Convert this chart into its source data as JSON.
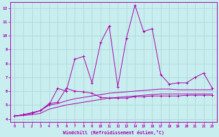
{
  "xlabel": "Windchill (Refroidissement éolien,°C)",
  "background_color": "#c8eef0",
  "grid_color": "#b0d8d8",
  "line_color": "#aa00aa",
  "xlim": [
    -0.5,
    23.5
  ],
  "ylim": [
    3.8,
    12.4
  ],
  "yticks": [
    4,
    5,
    6,
    7,
    8,
    9,
    10,
    11,
    12
  ],
  "xticks": [
    0,
    1,
    2,
    3,
    4,
    5,
    6,
    7,
    8,
    9,
    10,
    11,
    12,
    13,
    14,
    15,
    16,
    17,
    18,
    19,
    20,
    21,
    22,
    23
  ],
  "line_volatile_x": [
    0,
    1,
    2,
    3,
    4,
    5,
    6,
    7,
    8,
    9,
    10,
    11,
    12,
    13,
    14,
    15,
    16,
    17,
    18,
    19,
    20,
    21,
    22,
    23
  ],
  "line_volatile_y": [
    4.2,
    4.3,
    4.4,
    4.6,
    5.0,
    6.2,
    6.0,
    8.3,
    8.5,
    6.6,
    9.5,
    10.7,
    6.3,
    9.8,
    12.2,
    10.3,
    10.5,
    7.2,
    6.5,
    6.6,
    6.6,
    7.0,
    7.3,
    6.2
  ],
  "line_upper_x": [
    0,
    1,
    2,
    3,
    4,
    5,
    6,
    7,
    8,
    9,
    10,
    11,
    12,
    13,
    14,
    15,
    16,
    17,
    18,
    19,
    20,
    21,
    22,
    23
  ],
  "line_upper_y": [
    4.2,
    4.3,
    4.45,
    4.6,
    5.1,
    5.2,
    6.2,
    6.0,
    5.95,
    5.85,
    5.55,
    5.5,
    5.5,
    5.5,
    5.6,
    5.6,
    5.65,
    5.65,
    5.65,
    5.65,
    5.7,
    5.7,
    5.7,
    5.7
  ],
  "line_mid_x": [
    0,
    1,
    2,
    3,
    4,
    5,
    6,
    7,
    8,
    9,
    10,
    11,
    12,
    13,
    14,
    15,
    16,
    17,
    18,
    19,
    20,
    21,
    22,
    23
  ],
  "line_mid_y": [
    4.2,
    4.3,
    4.4,
    4.6,
    5.0,
    5.1,
    5.3,
    5.45,
    5.55,
    5.65,
    5.75,
    5.85,
    5.9,
    5.95,
    6.0,
    6.05,
    6.1,
    6.15,
    6.15,
    6.1,
    6.1,
    6.1,
    6.1,
    6.1
  ],
  "line_low_x": [
    0,
    1,
    2,
    3,
    4,
    5,
    6,
    7,
    8,
    9,
    10,
    11,
    12,
    13,
    14,
    15,
    16,
    17,
    18,
    19,
    20,
    21,
    22,
    23
  ],
  "line_low_y": [
    4.2,
    4.25,
    4.3,
    4.4,
    4.7,
    4.85,
    5.0,
    5.1,
    5.2,
    5.3,
    5.4,
    5.5,
    5.55,
    5.6,
    5.65,
    5.7,
    5.75,
    5.8,
    5.8,
    5.8,
    5.8,
    5.8,
    5.8,
    5.8
  ]
}
